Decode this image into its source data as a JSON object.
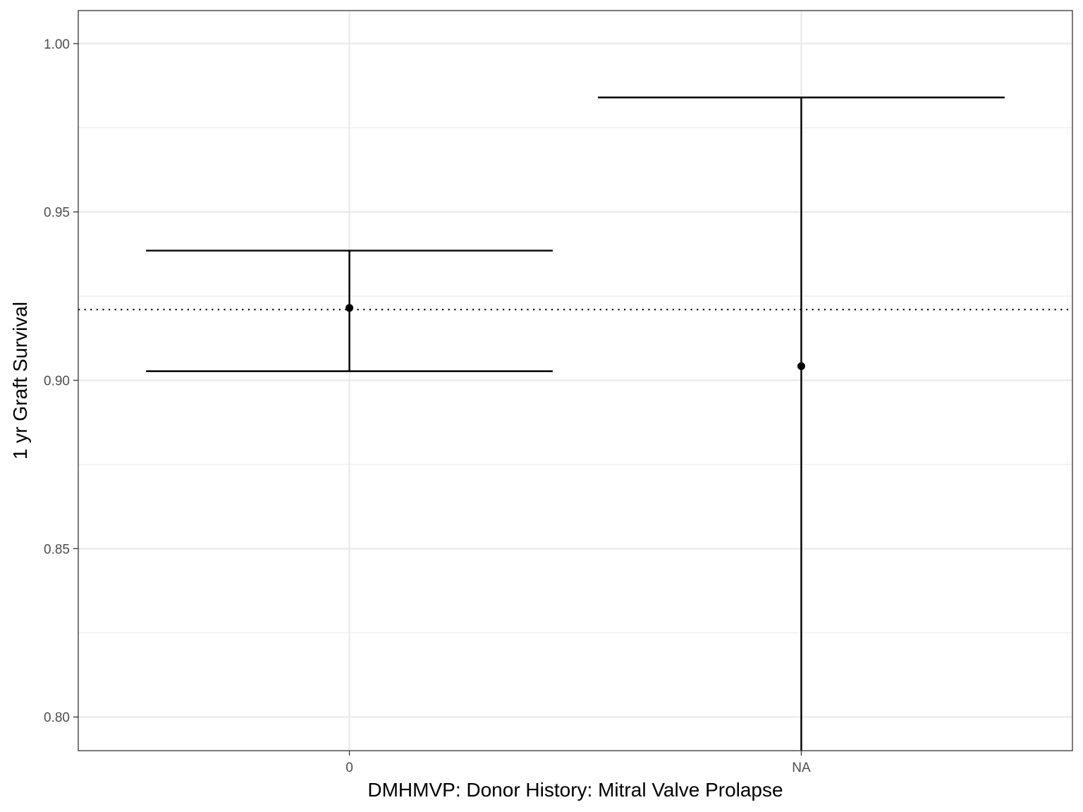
{
  "chart_data": {
    "type": "errorbar",
    "categories": [
      "0",
      "NA"
    ],
    "series": [
      {
        "points": [
          {
            "x": "0",
            "y": 0.9215,
            "ymin": 0.9027,
            "ymax": 0.9385
          },
          {
            "x": "NA",
            "y": 0.9042,
            "ymin": 0.79,
            "ymax": 0.984
          }
        ]
      }
    ],
    "reference_line": {
      "y": 0.921,
      "style": "dotted"
    },
    "xlabel": "DMHMVP: Donor History: Mitral Valve Prolapse",
    "ylabel": "1 yr Graft Survival",
    "ylim": [
      0.79,
      1.0098
    ],
    "yticks": [
      0.8,
      0.85,
      0.9,
      0.95,
      1.0
    ],
    "ytick_labels": [
      "0.80",
      "0.85",
      "0.90",
      "0.95",
      "1.00"
    ],
    "grid": true,
    "legend": "none",
    "colors": {
      "mark": "#000000",
      "grid": "#ebebeb",
      "panel_border": "#333333",
      "tick_text": "#4d4d4d"
    }
  }
}
